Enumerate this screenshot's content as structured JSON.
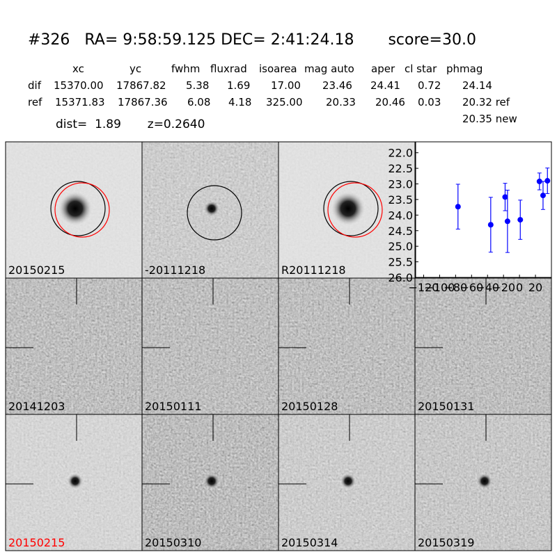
{
  "header": {
    "title": "#326   RA= 9:58:59.125 DEC= 2:41:24.18       score=30.0"
  },
  "table": {
    "columns": [
      "xc",
      "yc",
      "fwhm",
      "fluxrad",
      "isoarea",
      "mag auto",
      "aper",
      "cl star",
      "phmag"
    ],
    "rows": [
      [
        "dif",
        "15370.00",
        "17867.82",
        "5.38",
        "1.69",
        "17.00",
        "23.46",
        "24.41",
        "0.72",
        "24.14"
      ],
      [
        "ref",
        "15371.83",
        "17867.36",
        "6.08",
        "4.18",
        "325.00",
        "20.33",
        "20.46",
        "0.03",
        "20.32 ref"
      ]
    ],
    "extra": "20.35 new"
  },
  "info": "dist=  1.89       z=0.2640",
  "stamps": [
    {
      "label": "20150215"
    },
    {
      "label": "-20111218"
    },
    {
      "label": "R20111218"
    },
    {
      "label": "20141203"
    },
    {
      "label": "20150111"
    },
    {
      "label": "20150128"
    },
    {
      "label": "20150131"
    },
    {
      "label": "20150215",
      "color": "#ff0000"
    },
    {
      "label": "20150310"
    },
    {
      "label": "20150314"
    },
    {
      "label": "20150319"
    }
  ],
  "chart_data": {
    "type": "errorbar",
    "xlim": [
      -130,
      40
    ],
    "ylim": [
      26,
      21.65
    ],
    "xticks": [
      {
        "value": -120,
        "label": "−120"
      },
      {
        "value": -100,
        "label": "−100"
      },
      {
        "value": -80,
        "label": "−80"
      },
      {
        "value": -60,
        "label": "−60"
      },
      {
        "value": -40,
        "label": "−40"
      },
      {
        "value": -20,
        "label": "−20"
      },
      0,
      20
    ],
    "yticks": [
      {
        "value": 22,
        "label": "22.0"
      },
      {
        "value": 22.5,
        "label": "22.5"
      },
      {
        "value": 23,
        "label": "23.0"
      },
      {
        "value": 23.5,
        "label": "23.5"
      },
      {
        "value": 24,
        "label": "24.0"
      },
      {
        "value": 24.5,
        "label": "24.5"
      },
      {
        "value": 25,
        "label": "25.0"
      },
      {
        "value": 25.5,
        "label": "25.5"
      },
      {
        "value": 26,
        "label": "26.0"
      }
    ],
    "series": [
      {
        "color": "#0000ff",
        "x": [
          -77,
          -36,
          -18,
          -15,
          1,
          25,
          29.5,
          35
        ],
        "values": [
          23.73,
          24.31,
          23.42,
          24.2,
          24.15,
          22.92,
          23.37,
          22.9
        ],
        "errors": [
          0.72,
          0.88,
          0.44,
          1.0,
          0.63,
          0.27,
          0.45,
          0.41
        ]
      }
    ]
  }
}
